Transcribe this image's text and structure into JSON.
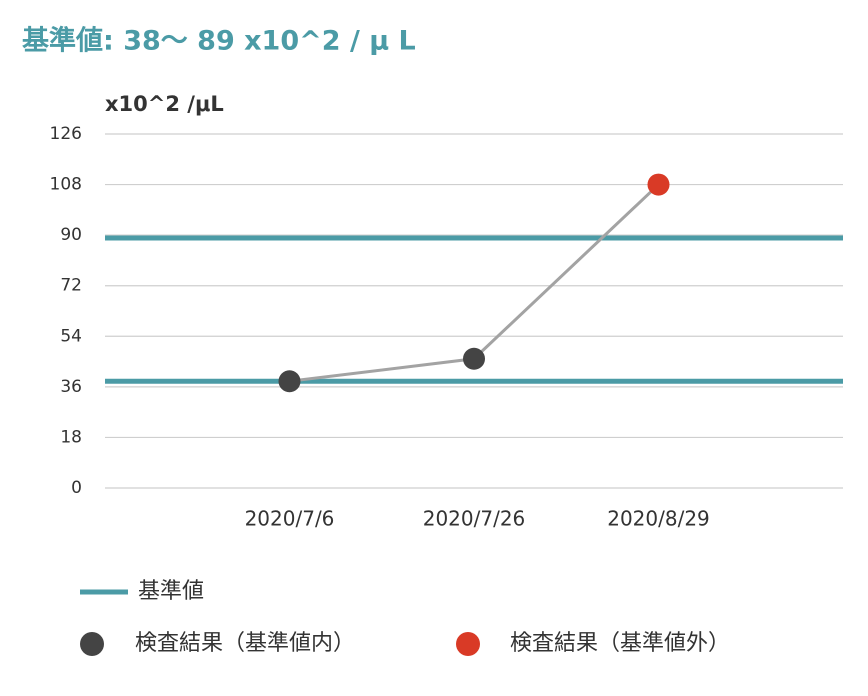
{
  "chart_data": {
    "type": "line",
    "title": "基準値: 38〜 89 x10^2 / μ L",
    "y_label": "x10^2 /μL",
    "categories": [
      null,
      "2020/7/6",
      "2020/7/26",
      "2020/8/29",
      null
    ],
    "values": [
      null,
      38,
      46,
      108,
      null
    ],
    "line_color": "#a3a3a3",
    "ylim": [
      0,
      126
    ],
    "yticks": [
      0,
      18,
      36,
      54,
      72,
      90,
      108,
      126
    ],
    "grid": true,
    "reference": {
      "name": "基準値",
      "color": "#4b9ba6",
      "values": [
        38,
        89
      ]
    },
    "markers": [
      {
        "name": "検査結果（基準値内）",
        "color": "#444444"
      },
      {
        "name": "検査結果（基準値外）",
        "color": "#d93a26"
      }
    ]
  }
}
